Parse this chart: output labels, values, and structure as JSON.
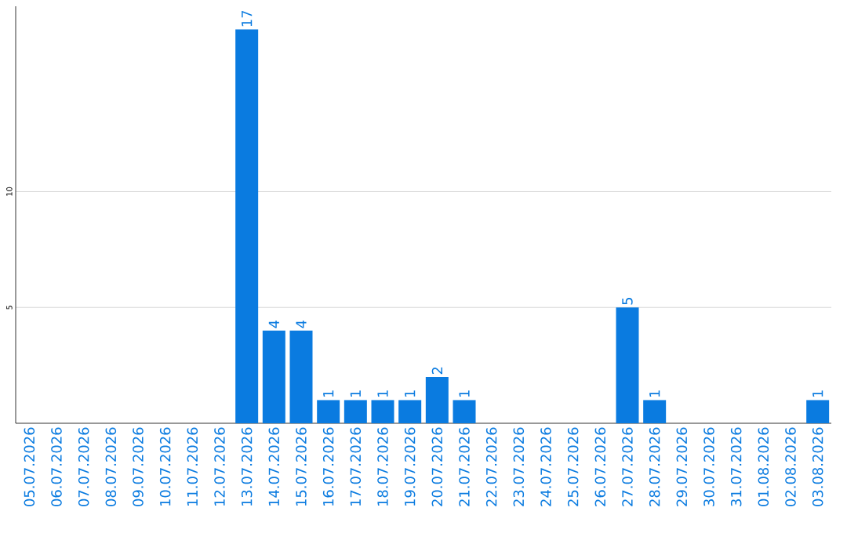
{
  "chart_data": {
    "type": "bar",
    "categories": [
      "05.07.2026",
      "06.07.2026",
      "07.07.2026",
      "08.07.2026",
      "09.07.2026",
      "10.07.2026",
      "11.07.2026",
      "12.07.2026",
      "13.07.2026",
      "14.07.2026",
      "15.07.2026",
      "16.07.2026",
      "17.07.2026",
      "18.07.2026",
      "19.07.2026",
      "20.07.2026",
      "21.07.2026",
      "22.07.2026",
      "23.07.2026",
      "24.07.2026",
      "25.07.2026",
      "26.07.2026",
      "27.07.2026",
      "28.07.2026",
      "29.07.2026",
      "30.07.2026",
      "31.07.2026",
      "01.08.2026",
      "02.08.2026",
      "03.08.2026"
    ],
    "values": [
      0,
      0,
      0,
      0,
      0,
      0,
      0,
      0,
      17,
      4,
      4,
      1,
      1,
      1,
      1,
      2,
      1,
      0,
      0,
      0,
      0,
      0,
      5,
      1,
      0,
      0,
      0,
      0,
      0,
      1
    ],
    "value_labels": [
      null,
      null,
      null,
      null,
      null,
      null,
      null,
      null,
      "17",
      "4",
      "4",
      "1",
      "1",
      "1",
      "1",
      "2",
      "1",
      null,
      null,
      null,
      null,
      null,
      "5",
      "1",
      null,
      null,
      null,
      null,
      null,
      "1"
    ],
    "color": "#0a7be0",
    "ylim": [
      0,
      18
    ],
    "yticks": [
      5,
      10
    ],
    "grid": "y"
  }
}
